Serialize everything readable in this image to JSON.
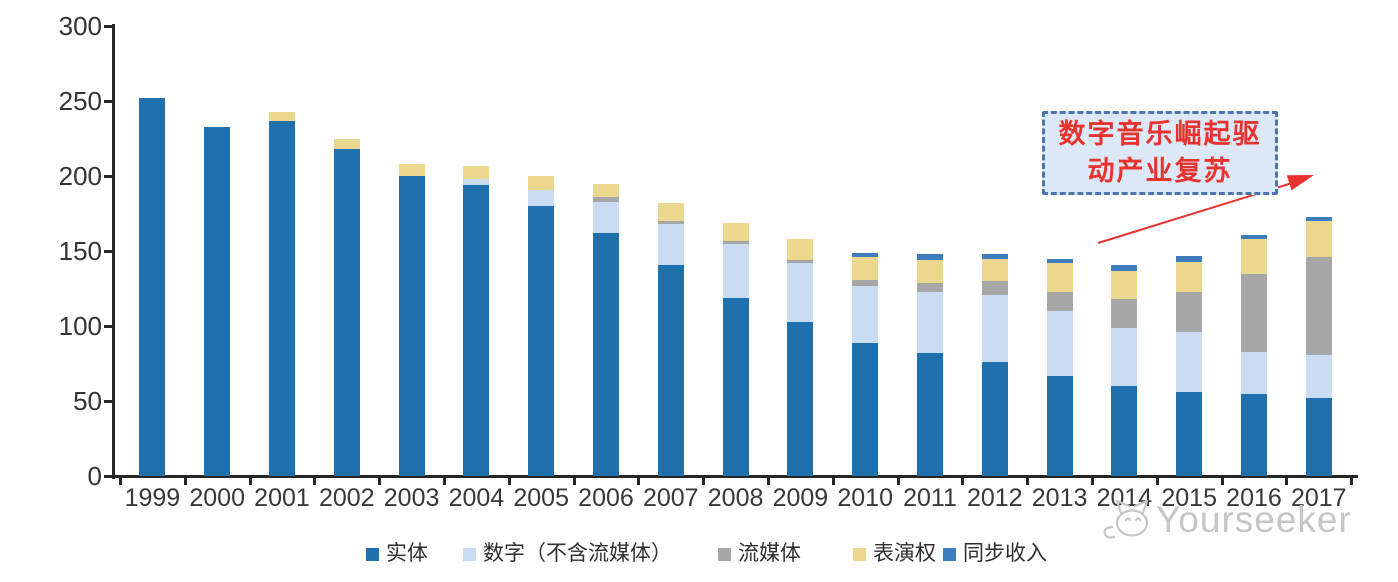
{
  "chart_data": {
    "type": "bar",
    "stacked": true,
    "title": "",
    "xlabel": "",
    "ylabel": "",
    "categories": [
      "1999",
      "2000",
      "2001",
      "2002",
      "2003",
      "2004",
      "2005",
      "2006",
      "2007",
      "2008",
      "2009",
      "2010",
      "2011",
      "2012",
      "2013",
      "2014",
      "2015",
      "2016",
      "2017"
    ],
    "series": [
      {
        "name": "实体",
        "color": "#2170AE",
        "values": [
          252,
          233,
          237,
          218,
          200,
          194,
          180,
          162,
          141,
          119,
          103,
          89,
          82,
          76,
          67,
          60,
          56,
          55,
          52
        ]
      },
      {
        "name": "数字（不含流媒体）",
        "color": "#C9DCF1",
        "values": [
          0,
          0,
          0,
          0,
          0,
          4,
          11,
          21,
          27,
          36,
          39,
          38,
          41,
          45,
          43,
          39,
          40,
          28,
          29
        ]
      },
      {
        "name": "流媒体",
        "color": "#A6A6A6",
        "values": [
          0,
          0,
          0,
          0,
          0,
          0,
          0,
          3,
          2,
          2,
          2,
          4,
          6,
          9,
          13,
          19,
          27,
          52,
          65
        ]
      },
      {
        "name": "表演权",
        "color": "#EBD78E",
        "values": [
          0,
          0,
          6,
          7,
          8,
          9,
          9,
          9,
          12,
          12,
          14,
          15,
          15,
          15,
          19,
          19,
          20,
          23,
          24
        ]
      },
      {
        "name": "同步收入",
        "color": "#3E7DBD",
        "values": [
          0,
          0,
          0,
          0,
          0,
          0,
          0,
          0,
          0,
          0,
          0,
          3,
          4,
          3,
          3,
          4,
          4,
          3,
          3
        ]
      }
    ],
    "totals": [
      252,
      233,
      243,
      225,
      208,
      207,
      200,
      195,
      182,
      169,
      158,
      149,
      148,
      148,
      145,
      141,
      147,
      161,
      173
    ],
    "ylim": [
      0,
      300
    ],
    "yticks": [
      0,
      50,
      100,
      150,
      200,
      250,
      300
    ],
    "grid": false,
    "legend_position": "bottom"
  },
  "annotation": {
    "line1": "数字音乐崛起驱",
    "line2": "动产业复苏",
    "text_color": "#E8322E",
    "border_color": "#4C74B0",
    "fill_color": "#DCE8F6",
    "arrow_color": "#E8322E"
  },
  "watermark": {
    "text": "Yourseeker",
    "logo": "cat-logo-icon",
    "color": "#C6C6C6"
  },
  "axes": {
    "line_color": "#262626",
    "label_color": "#333333"
  }
}
